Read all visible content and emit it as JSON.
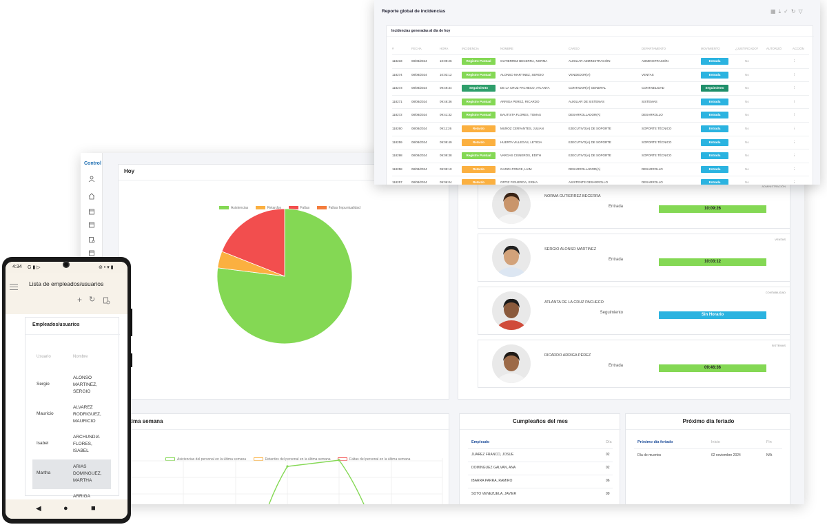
{
  "dashboard": {
    "logo": "Control",
    "today_card_title": "Hoy",
    "pie_legend": [
      "Asistencias",
      "Retardos",
      "Faltas",
      "Faltas Impuntualidad"
    ],
    "pie_colors": [
      "#84d854",
      "#fbb040",
      "#f24e4e",
      "#f47c3c"
    ],
    "pie_data": {
      "values": [
        77,
        4,
        19,
        0
      ]
    },
    "employees": [
      {
        "dept": "ADMINISTRACIÓN",
        "name": "NORMA GUTIERREZ BECERRA",
        "type": "Entrada",
        "time": "10:09:26",
        "color": "#84d854"
      },
      {
        "dept": "VENTAS",
        "name": "SERGIO ALONSO MARTINEZ",
        "type": "Entrada",
        "time": "10:03:12",
        "color": "#84d854"
      },
      {
        "dept": "CONTABILIDAD",
        "name": "ATLANTA DE LA CRUZ PACHECO",
        "type": "Seguimiento",
        "time": "Sin Horario",
        "color": "#2bb3e0"
      },
      {
        "dept": "SISTEMAS",
        "name": "RICARDO ARRIGA PÉREZ",
        "type": "Entrada",
        "time": "09:46:36",
        "color": "#84d854"
      }
    ],
    "week_title": "Última semana",
    "week_legend": [
      "Asistencias del personal en la última semana",
      "Retardos del personal en la última semana",
      "Faltas del personal en la última semana"
    ],
    "week_colors": [
      "#84d854",
      "#fbb040",
      "#f24e4e"
    ],
    "birthdays": {
      "title": "Cumpleaños del mes",
      "col_employee": "Empleado",
      "col_day": "Día",
      "rows": [
        {
          "name": "JUAREZ FRANCO, JOSUE",
          "day": "02"
        },
        {
          "name": "DOMINGUEZ GALVAN, ANA",
          "day": "02"
        },
        {
          "name": "IBARRA PARRA, RAMIRO",
          "day": "06"
        },
        {
          "name": "SOTO VENEZUELA, JAVIER",
          "day": "09"
        }
      ]
    },
    "holiday": {
      "title": "Próximo día feriado",
      "col_name": "Próximo día feriado",
      "col_start": "Inicio",
      "col_end": "Fin",
      "row": {
        "name": "Día de muertos",
        "start": "02 noviembre 2024",
        "end": "N/A"
      }
    }
  },
  "report": {
    "title": "Reporte global de incidencias",
    "card_title": "Incidencias generadas al día de hoy",
    "headers": [
      "#",
      "FECHA",
      "HORA",
      "INCIDENCIA",
      "NOMBRE",
      "CARGO",
      "DEPARTAMENTO",
      "MOVIMIENTO",
      "¿JUSTIFICADO?",
      "AUTORIZÓ",
      "ACCIÓN"
    ],
    "rows": [
      {
        "id": "118233",
        "date": "08/08/2024",
        "time": "10:09:26",
        "inc": "Registro Puntual",
        "inc_color": "#84d854",
        "name": "GUTIERREZ BECERRA, NORMA",
        "cargo": "AUXILIAR ADMINISTRACIÓN",
        "dept": "ADMINISTRACIÓN",
        "mov": "Entrada",
        "mov_color": "#2bb3e0",
        "just": "No",
        "auth": "",
        "acc": "⋮"
      },
      {
        "id": "118274",
        "date": "08/08/2024",
        "time": "10:03:12",
        "inc": "Registro Puntual",
        "inc_color": "#84d854",
        "name": "ALONSO MARTINEZ, SERGIO",
        "cargo": "VENDEDOR(A)",
        "dept": "VENTAS",
        "mov": "Entrada",
        "mov_color": "#2bb3e0",
        "just": "No",
        "auth": "",
        "acc": "⋮"
      },
      {
        "id": "118273",
        "date": "08/08/2024",
        "time": "09:49:34",
        "inc": "Seguimiento",
        "inc_color": "#2e9e6b",
        "name": "DE LA CRUZ PACHECO, ATLANTA",
        "cargo": "CONTADOR(A) GENERAL",
        "dept": "CONTABILIDAD",
        "mov": "Seguimiento",
        "mov_color": "#1f8f6a",
        "just": "No",
        "auth": "",
        "acc": "⋮"
      },
      {
        "id": "118271",
        "date": "08/08/2024",
        "time": "09:46:36",
        "inc": "Registro Puntual",
        "inc_color": "#84d854",
        "name": "ARRIGA PEREZ, RICARDO",
        "cargo": "AUXILIAR DE SISTEMAS",
        "dept": "SISTEMAS",
        "mov": "Entrada",
        "mov_color": "#2bb3e0",
        "just": "No",
        "auth": "",
        "acc": "⋮"
      },
      {
        "id": "118272",
        "date": "08/08/2024",
        "time": "09:41:32",
        "inc": "Registro Puntual",
        "inc_color": "#84d854",
        "name": "BAUTISTA FLORES, TOMAS",
        "cargo": "DESARROLLADOR(A)",
        "dept": "DESARROLLO",
        "mov": "Entrada",
        "mov_color": "#2bb3e0",
        "just": "No",
        "auth": "",
        "acc": "⋮"
      },
      {
        "id": "118260",
        "date": "08/08/2024",
        "time": "09:11:26",
        "inc": "Retardo",
        "inc_color": "#fbb040",
        "name": "MUÑOZ CERVANTES, JULIAN",
        "cargo": "EJECUTIVO(A) DE SOPORTE",
        "dept": "SOPORTE TÉCNICO",
        "mov": "Entrada",
        "mov_color": "#2bb3e0",
        "just": "No",
        "auth": "",
        "acc": "⋮"
      },
      {
        "id": "118259",
        "date": "08/08/2024",
        "time": "09:09:49",
        "inc": "Retardo",
        "inc_color": "#fbb040",
        "name": "HUERTA VILLEGAS, LETICIA",
        "cargo": "EJECUTIVO(A) DE SOPORTE",
        "dept": "SOPORTE TÉCNICO",
        "mov": "Entrada",
        "mov_color": "#2bb3e0",
        "just": "No",
        "auth": "",
        "acc": "⋮"
      },
      {
        "id": "118298",
        "date": "08/08/2024",
        "time": "09:09:38",
        "inc": "Registro Puntual",
        "inc_color": "#84d854",
        "name": "VARGAS CISNEROS, EDITH",
        "cargo": "EJECUTIVO(A) DE SOPORTE",
        "dept": "SOPORTE TÉCNICO",
        "mov": "Entrada",
        "mov_color": "#2bb3e0",
        "just": "No",
        "auth": "",
        "acc": "⋮"
      },
      {
        "id": "118258",
        "date": "08/08/2024",
        "time": "09:09:10",
        "inc": "Retardo",
        "inc_color": "#fbb040",
        "name": "GARZA PONCE, LIAM",
        "cargo": "DESARROLLADOR(A)",
        "dept": "DESARROLLO",
        "mov": "Entrada",
        "mov_color": "#2bb3e0",
        "just": "No",
        "auth": "",
        "acc": "⋮"
      },
      {
        "id": "118257",
        "date": "08/08/2024",
        "time": "09:06:04",
        "inc": "Retardo",
        "inc_color": "#fbb040",
        "name": "ORTIZ FIGUEROA, ERIKA",
        "cargo": "ASISTENTE DESARROLLO",
        "dept": "DESARROLLO",
        "mov": "Entrada",
        "mov_color": "#2bb3e0",
        "just": "No",
        "auth": "",
        "acc": "⋮"
      }
    ]
  },
  "phone": {
    "status_time": "4:34",
    "status_icons": "G ▮ ▷",
    "status_right": "⊘ • ▾ ▮",
    "title": "Lista de empleados/usuarios",
    "card_title": "Empleados/usuarios",
    "col_user": "Usuario",
    "col_name": "Nombre",
    "rows": [
      {
        "user": "Sergio",
        "name": [
          "ALONSO",
          "MARTINEZ,",
          "SERGIO"
        ],
        "selected": false
      },
      {
        "user": "Mauricio",
        "name": [
          "ALVAREZ",
          "RODRIGUEZ,",
          "MAURICIO"
        ],
        "selected": false
      },
      {
        "user": "Isabel",
        "name": [
          "ARCHUNDIA",
          "FLORES,",
          "ISABEL"
        ],
        "selected": false
      },
      {
        "user": "Martha",
        "name": [
          "ARIAS",
          "DOMINGUEZ,",
          "MARTHA"
        ],
        "selected": true
      },
      {
        "user": "",
        "name": [
          "ARRIGA"
        ],
        "selected": false
      }
    ]
  }
}
